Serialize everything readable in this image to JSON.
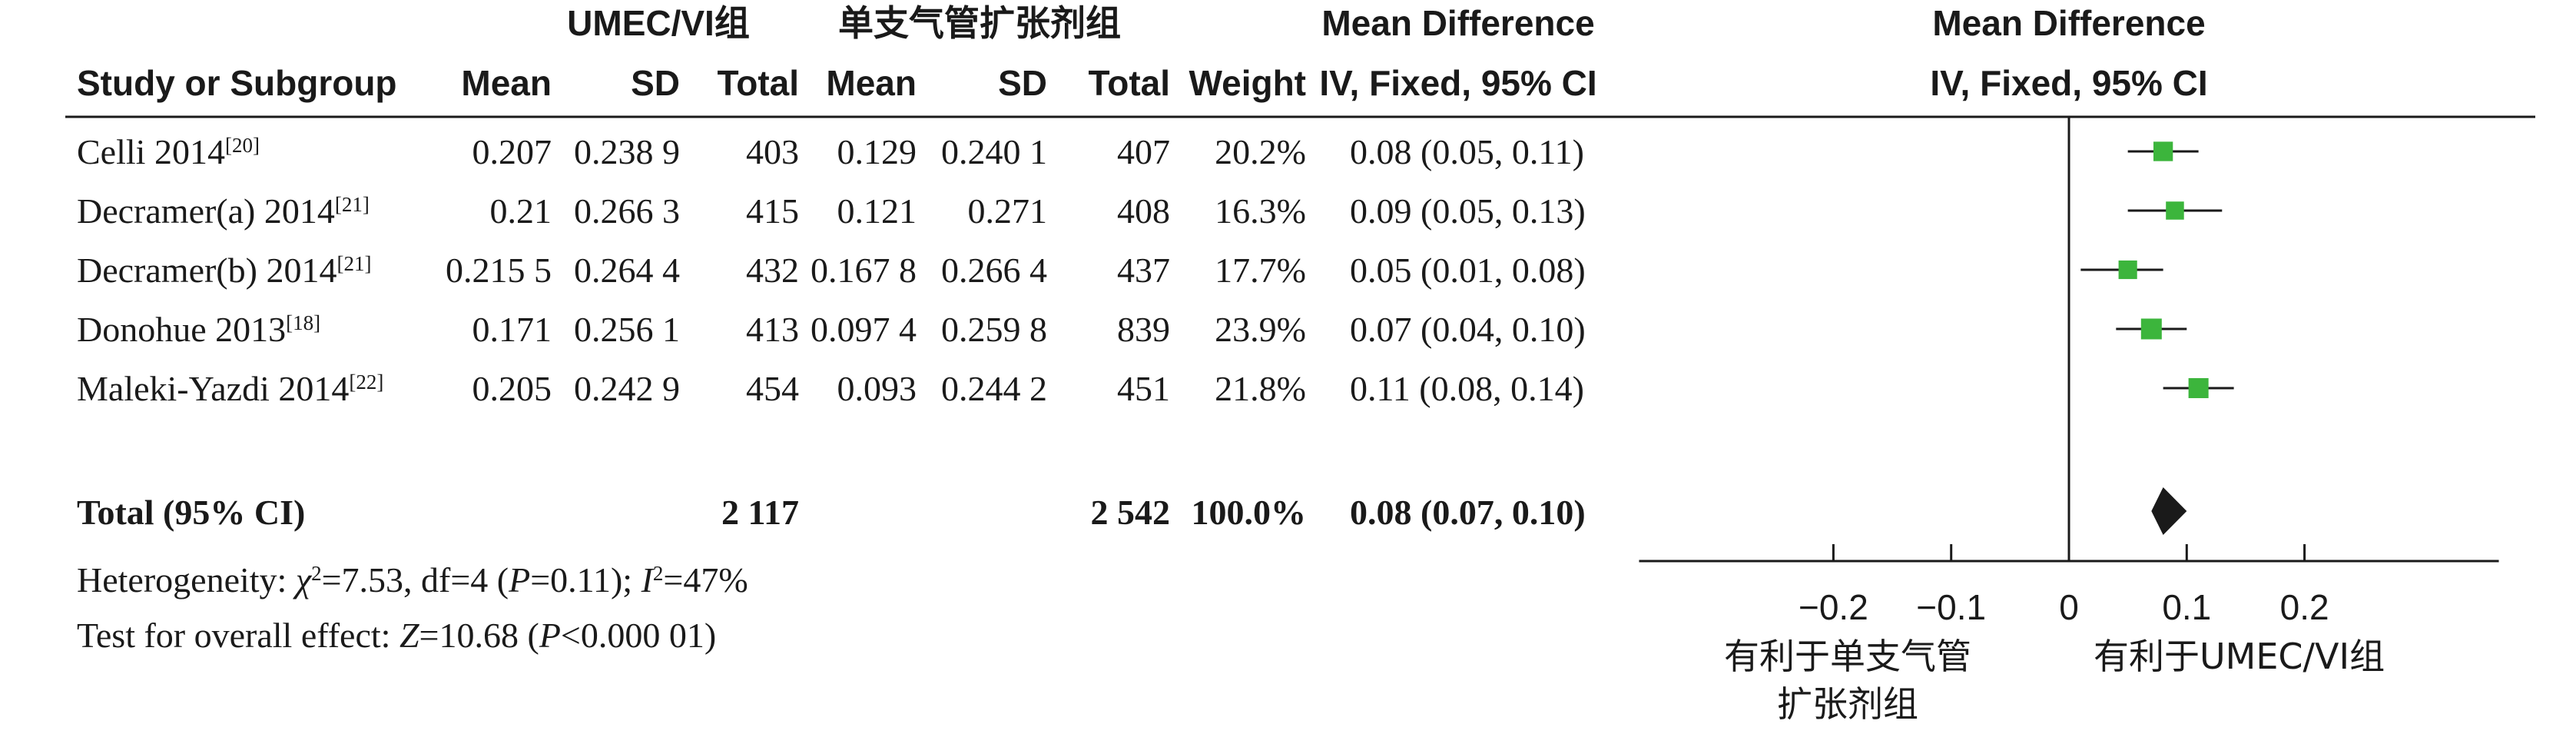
{
  "chart_data": {
    "type": "forest",
    "group_headers": {
      "experimental": "UMEC/VI组",
      "control": "单支气管扩张剂组",
      "effect": "Mean Difference",
      "plot": "Mean Difference"
    },
    "columns": {
      "study": "Study or Subgroup",
      "mean1": "Mean",
      "sd1": "SD",
      "total1": "Total",
      "mean2": "Mean",
      "sd2": "SD",
      "total2": "Total",
      "weight": "Weight",
      "effect": "IV, Fixed, 95% CI",
      "plot": "IV, Fixed, 95% CI"
    },
    "studies": [
      {
        "name": "Celli 2014",
        "ref": "[20]",
        "mean1": "0.207",
        "sd1": "0.238 9",
        "total1": "403",
        "mean2": "0.129",
        "sd2": "0.240 1",
        "total2": "407",
        "weight": "20.2%",
        "ci_text": "0.08 (0.05, 0.11)",
        "md": 0.08,
        "lo": 0.05,
        "hi": 0.11
      },
      {
        "name": "Decramer(a) 2014",
        "ref": "[21]",
        "mean1": "0.21",
        "sd1": "0.266 3",
        "total1": "415",
        "mean2": "0.121",
        "sd2": "0.271",
        "total2": "408",
        "weight": "16.3%",
        "ci_text": "0.09 (0.05, 0.13)",
        "md": 0.09,
        "lo": 0.05,
        "hi": 0.13
      },
      {
        "name": "Decramer(b) 2014",
        "ref": "[21]",
        "mean1": "0.215 5",
        "sd1": "0.264 4",
        "total1": "432",
        "mean2": "0.167 8",
        "sd2": "0.266 4",
        "total2": "437",
        "weight": "17.7%",
        "ci_text": "0.05 (0.01, 0.08)",
        "md": 0.05,
        "lo": 0.01,
        "hi": 0.08
      },
      {
        "name": "Donohue 2013",
        "ref": "[18]",
        "mean1": "0.171",
        "sd1": "0.256 1",
        "total1": "413",
        "mean2": "0.097 4",
        "sd2": "0.259 8",
        "total2": "839",
        "weight": "23.9%",
        "ci_text": "0.07 (0.04, 0.10)",
        "md": 0.07,
        "lo": 0.04,
        "hi": 0.1
      },
      {
        "name": "Maleki-Yazdi 2014",
        "ref": "[22]",
        "mean1": "0.205",
        "sd1": "0.242 9",
        "total1": "454",
        "mean2": "0.093",
        "sd2": "0.244 2",
        "total2": "451",
        "weight": "21.8%",
        "ci_text": "0.11 (0.08, 0.14)",
        "md": 0.11,
        "lo": 0.08,
        "hi": 0.14
      }
    ],
    "total": {
      "label": "Total (95% CI)",
      "total1": "2 117",
      "total2": "2 542",
      "weight": "100.0%",
      "ci_text": "0.08 (0.07, 0.10)",
      "md": 0.08,
      "lo": 0.07,
      "hi": 0.1
    },
    "heterogeneity": {
      "label": "Heterogeneity: ",
      "chi_symbol": "χ",
      "chi_sup": "2",
      "chi_rest": "=7.53, df=4 (",
      "p_symbol": "P",
      "p_rest": "=0.11); ",
      "i_symbol": "I",
      "i_sup": "2",
      "i_rest": "=47%"
    },
    "overall": {
      "label": "Test for overall effect: ",
      "z_symbol": "Z",
      "z_rest": "=10.68 (",
      "p_symbol": "P",
      "p_rest": "<0.000 01)"
    },
    "x_axis": {
      "ticks": [
        -0.2,
        -0.1,
        0,
        0.1,
        0.2
      ],
      "tick_labels": [
        "−0.2",
        "−0.1",
        "0",
        "0.1",
        "0.2"
      ],
      "xlim": [
        -0.365,
        0.365
      ]
    },
    "favours_left": [
      "有利于单支气管",
      "扩张剂组"
    ],
    "favours_right": "有利于UMEC/VI组",
    "colors": {
      "square": "#3cb53c",
      "diamond": "#1a1a1a",
      "text": "#1a1a1a"
    }
  }
}
